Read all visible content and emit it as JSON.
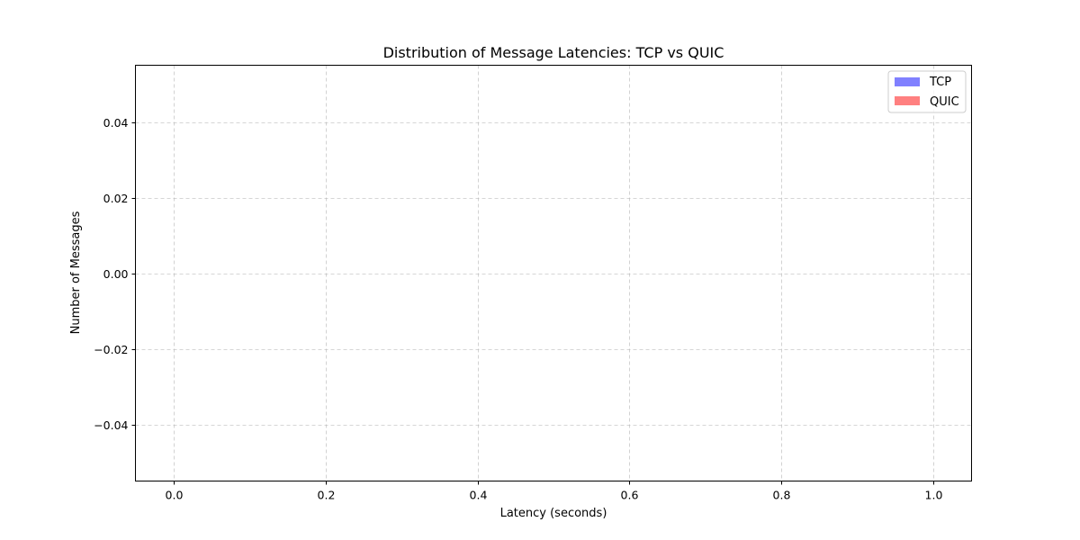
{
  "chart_data": {
    "type": "bar",
    "title": "Distribution of Message Latencies: TCP vs QUIC",
    "xlabel": "Latency (seconds)",
    "ylabel": "Number of Messages",
    "xlim": [
      -0.05,
      1.05
    ],
    "ylim": [
      -0.055,
      0.055
    ],
    "x_ticks": [
      0.0,
      0.2,
      0.4,
      0.6,
      0.8,
      1.0
    ],
    "x_tick_labels": [
      "0.0",
      "0.2",
      "0.4",
      "0.6",
      "0.8",
      "1.0"
    ],
    "y_ticks": [
      0.04,
      0.02,
      0.0,
      -0.02,
      -0.04
    ],
    "y_tick_labels": [
      "0.04",
      "0.02",
      "0.00",
      "−0.02",
      "−0.04"
    ],
    "grid": true,
    "grid_style": "dashed",
    "legend_position": "top-right",
    "series": [
      {
        "name": "TCP",
        "color": "#8080ff",
        "values": []
      },
      {
        "name": "QUIC",
        "color": "#ff8080",
        "values": []
      }
    ]
  }
}
